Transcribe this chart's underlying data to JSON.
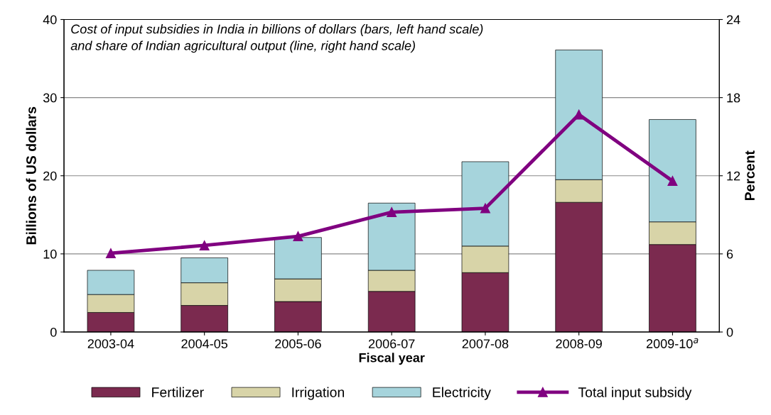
{
  "chart_data": {
    "type": "bar",
    "stacked": true,
    "title": "Cost of input subsidies in India in billions of dollars (bars, left hand scale)\nand share of Indian agricultural output (line, right hand scale)",
    "xlabel": "Fiscal year",
    "ylabel": "Billions of US dollars",
    "y2label": "Percent",
    "categories": [
      "2003-04",
      "2004-05",
      "2005-06",
      "2006-07",
      "2007-08",
      "2008-09",
      "2009-10$^{a}$"
    ],
    "series": [
      {
        "name": "Fertilizer",
        "color": "#7b2a4f",
        "values": [
          2.5,
          3.4,
          3.9,
          5.2,
          7.6,
          16.6,
          11.2
        ]
      },
      {
        "name": "Irrigation",
        "color": "#d8d4a8",
        "values": [
          2.3,
          2.9,
          2.9,
          2.7,
          3.4,
          2.9,
          2.9
        ]
      },
      {
        "name": "Electricity",
        "color": "#a6d4dc",
        "values": [
          3.1,
          3.2,
          5.3,
          8.6,
          10.8,
          16.6,
          13.1
        ]
      },
      {
        "name": "Total input subsidy",
        "type": "line",
        "axis": "y2",
        "color": "#800080",
        "marker": "triangle",
        "values": [
          6.05,
          6.65,
          7.35,
          9.2,
          9.5,
          16.7,
          11.6
        ]
      }
    ],
    "ylim": [
      0,
      40
    ],
    "yticks": [
      0,
      10,
      20,
      30,
      40
    ],
    "y2lim": [
      0,
      24
    ],
    "y2ticks": [
      0,
      6,
      12,
      18,
      24
    ],
    "grid": "y",
    "legend": "bottom"
  }
}
